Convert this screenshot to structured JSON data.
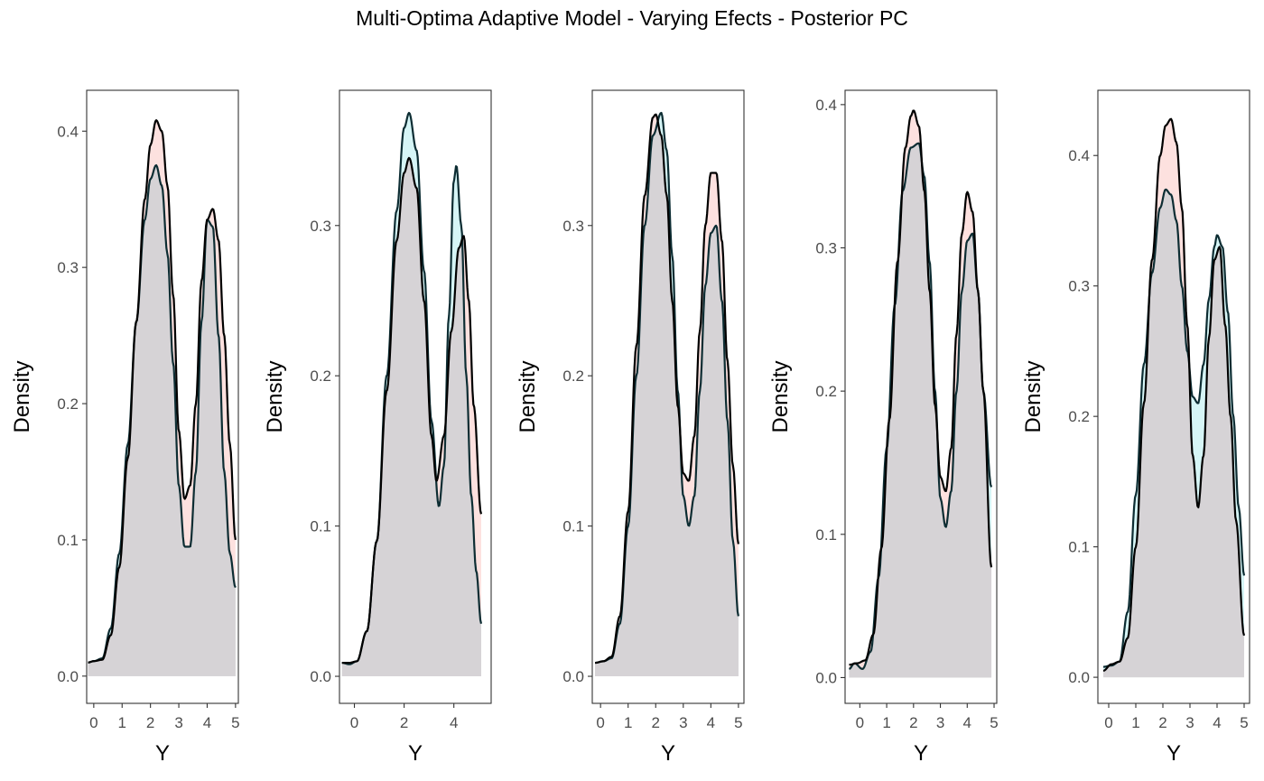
{
  "chart_data": {
    "title": "Multi-Optima Adaptive Model - Varying Efects - Posterior PC",
    "type": "area",
    "fill_colors": {
      "series_a": "#f8766d",
      "series_b": "#00bfc4",
      "overlap": "#d6d3d6"
    },
    "curve_colors": {
      "series_a": "#000000",
      "series_b": "#0d2d33"
    },
    "panels": [
      {
        "xlabel": "Y",
        "ylabel": "Density",
        "xlim": [
          -0.25,
          5.1
        ],
        "ylim": [
          -0.02,
          0.43
        ],
        "xticks": [
          0,
          1,
          2,
          3,
          4,
          5
        ],
        "xtick_labels": [
          "0",
          "1",
          "2",
          "3",
          "4",
          "5"
        ],
        "yticks": [
          0,
          0.1,
          0.2,
          0.3,
          0.4
        ],
        "ytick_labels": [
          "0.0",
          "0.1",
          "0.2",
          "0.3",
          "0.4"
        ],
        "series": [
          {
            "x": [
              -0.2,
              0,
              0.3,
              0.6,
              0.9,
              1.2,
              1.5,
              1.8,
              2.0,
              2.2,
              2.4,
              2.6,
              2.8,
              3.0,
              3.2,
              3.4,
              3.6,
              3.8,
              4.0,
              4.2,
              4.4,
              4.6,
              4.8,
              5.0
            ],
            "y": [
              0.01,
              0.011,
              0.012,
              0.03,
              0.08,
              0.16,
              0.26,
              0.35,
              0.39,
              0.408,
              0.4,
              0.36,
              0.28,
              0.18,
              0.13,
              0.14,
              0.2,
              0.29,
              0.335,
              0.343,
              0.32,
              0.25,
              0.17,
              0.1
            ]
          },
          {
            "x": [
              -0.2,
              0,
              0.3,
              0.6,
              0.9,
              1.2,
              1.5,
              1.8,
              2.0,
              2.2,
              2.4,
              2.6,
              2.8,
              3.0,
              3.2,
              3.4,
              3.6,
              3.8,
              4.0,
              4.2,
              4.4,
              4.6,
              4.8,
              5.0
            ],
            "y": [
              0.01,
              0.011,
              0.013,
              0.035,
              0.09,
              0.17,
              0.26,
              0.335,
              0.365,
              0.375,
              0.36,
              0.31,
              0.23,
              0.14,
              0.095,
              0.095,
              0.15,
              0.26,
              0.335,
              0.33,
              0.25,
              0.15,
              0.09,
              0.065
            ]
          }
        ]
      },
      {
        "xlabel": "Y",
        "ylabel": "Density",
        "xlim": [
          -0.6,
          5.5
        ],
        "ylim": [
          -0.018,
          0.39
        ],
        "xticks": [
          0,
          2,
          4
        ],
        "xtick_labels": [
          "0",
          "2",
          "4"
        ],
        "yticks": [
          0,
          0.1,
          0.2,
          0.3
        ],
        "ytick_labels": [
          "0.0",
          "0.1",
          "0.2",
          "0.3"
        ],
        "series": [
          {
            "x": [
              -0.5,
              -0.2,
              0.1,
              0.5,
              0.9,
              1.3,
              1.7,
              2.0,
              2.2,
              2.5,
              2.8,
              3.1,
              3.3,
              3.6,
              3.9,
              4.2,
              4.4,
              4.6,
              4.8,
              5.1
            ],
            "y": [
              0.009,
              0.009,
              0.01,
              0.03,
              0.09,
              0.19,
              0.29,
              0.335,
              0.345,
              0.325,
              0.25,
              0.16,
              0.13,
              0.16,
              0.23,
              0.285,
              0.293,
              0.25,
              0.18,
              0.108
            ]
          },
          {
            "x": [
              -0.5,
              -0.2,
              0.1,
              0.5,
              0.9,
              1.3,
              1.7,
              2.0,
              2.2,
              2.5,
              2.8,
              3.1,
              3.4,
              3.6,
              3.8,
              4.0,
              4.1,
              4.3,
              4.5,
              4.7,
              4.9,
              5.1
            ],
            "y": [
              0.009,
              0.008,
              0.01,
              0.03,
              0.09,
              0.2,
              0.31,
              0.365,
              0.375,
              0.35,
              0.27,
              0.17,
              0.113,
              0.14,
              0.24,
              0.33,
              0.34,
              0.3,
              0.2,
              0.12,
              0.07,
              0.035
            ]
          }
        ]
      },
      {
        "xlabel": "Y",
        "ylabel": "Density",
        "xlim": [
          -0.3,
          5.2
        ],
        "ylim": [
          -0.018,
          0.39
        ],
        "xticks": [
          0,
          1,
          2,
          3,
          4,
          5
        ],
        "xtick_labels": [
          "0",
          "1",
          "2",
          "3",
          "4",
          "5"
        ],
        "yticks": [
          0,
          0.1,
          0.2,
          0.3
        ],
        "ytick_labels": [
          "0.0",
          "0.1",
          "0.2",
          "0.3"
        ],
        "series": [
          {
            "x": [
              -0.2,
              0.1,
              0.4,
              0.7,
              1.0,
              1.3,
              1.6,
              1.9,
              2.0,
              2.2,
              2.4,
              2.6,
              2.8,
              3.0,
              3.2,
              3.4,
              3.6,
              3.8,
              4.0,
              4.2,
              4.4,
              4.6,
              4.8,
              5.0
            ],
            "y": [
              0.009,
              0.01,
              0.013,
              0.04,
              0.11,
              0.22,
              0.32,
              0.372,
              0.374,
              0.36,
              0.32,
              0.25,
              0.18,
              0.135,
              0.13,
              0.16,
              0.23,
              0.3,
              0.335,
              0.335,
              0.29,
              0.21,
              0.14,
              0.088
            ]
          },
          {
            "x": [
              -0.2,
              0.1,
              0.4,
              0.7,
              1.0,
              1.3,
              1.6,
              1.9,
              2.2,
              2.4,
              2.6,
              2.8,
              3.0,
              3.2,
              3.4,
              3.6,
              3.8,
              4.0,
              4.2,
              4.4,
              4.6,
              4.8,
              5.0
            ],
            "y": [
              0.009,
              0.01,
              0.012,
              0.035,
              0.1,
              0.2,
              0.3,
              0.36,
              0.375,
              0.35,
              0.28,
              0.19,
              0.12,
              0.1,
              0.12,
              0.19,
              0.26,
              0.295,
              0.3,
              0.25,
              0.17,
              0.09,
              0.04
            ]
          }
        ]
      },
      {
        "xlabel": "Y",
        "ylabel": "Density",
        "xlim": [
          -0.55,
          5.1
        ],
        "ylim": [
          -0.018,
          0.41
        ],
        "xticks": [
          0,
          1,
          2,
          3,
          4,
          5
        ],
        "xtick_labels": [
          "0",
          "1",
          "2",
          "3",
          "4",
          "5"
        ],
        "yticks": [
          0,
          0.1,
          0.2,
          0.3,
          0.4
        ],
        "ytick_labels": [
          "0.0",
          "0.1",
          "0.2",
          "0.3",
          "0.4"
        ],
        "series": [
          {
            "x": [
              -0.4,
              -0.1,
              0.2,
              0.5,
              0.8,
              1.1,
              1.4,
              1.7,
              1.9,
              2.0,
              2.2,
              2.4,
              2.6,
              2.8,
              3.0,
              3.2,
              3.4,
              3.6,
              3.8,
              4.0,
              4.2,
              4.4,
              4.6,
              4.9
            ],
            "y": [
              0.009,
              0.01,
              0.012,
              0.03,
              0.09,
              0.18,
              0.29,
              0.37,
              0.392,
              0.396,
              0.385,
              0.34,
              0.27,
              0.19,
              0.14,
              0.13,
              0.16,
              0.24,
              0.31,
              0.339,
              0.325,
              0.27,
              0.2,
              0.077
            ]
          },
          {
            "x": [
              -0.4,
              -0.2,
              0.1,
              0.4,
              0.7,
              1.0,
              1.3,
              1.6,
              1.9,
              2.2,
              2.4,
              2.6,
              2.8,
              3.0,
              3.2,
              3.4,
              3.6,
              3.8,
              4.0,
              4.2,
              4.4,
              4.6,
              4.9
            ],
            "y": [
              0.006,
              0.01,
              0.006,
              0.018,
              0.07,
              0.16,
              0.26,
              0.34,
              0.37,
              0.373,
              0.35,
              0.29,
              0.2,
              0.125,
              0.105,
              0.13,
              0.2,
              0.27,
              0.305,
              0.31,
              0.27,
              0.2,
              0.133
            ]
          }
        ]
      },
      {
        "xlabel": "Y",
        "ylabel": "Density",
        "xlim": [
          -0.4,
          5.2
        ],
        "ylim": [
          -0.02,
          0.45
        ],
        "xticks": [
          0,
          1,
          2,
          3,
          4,
          5
        ],
        "xtick_labels": [
          "0",
          "1",
          "2",
          "3",
          "4",
          "5"
        ],
        "yticks": [
          0,
          0.1,
          0.2,
          0.3,
          0.4
        ],
        "ytick_labels": [
          "0.0",
          "0.1",
          "0.2",
          "0.3",
          "0.4"
        ],
        "series": [
          {
            "x": [
              -0.2,
              0.1,
              0.4,
              0.7,
              1.0,
              1.3,
              1.6,
              1.9,
              2.1,
              2.3,
              2.5,
              2.7,
              2.9,
              3.1,
              3.3,
              3.5,
              3.7,
              3.9,
              4.1,
              4.3,
              4.5,
              4.7,
              5.0
            ],
            "y": [
              0.005,
              0.01,
              0.012,
              0.03,
              0.1,
              0.21,
              0.32,
              0.4,
              0.423,
              0.428,
              0.41,
              0.36,
              0.27,
              0.17,
              0.13,
              0.17,
              0.26,
              0.32,
              0.33,
              0.27,
              0.2,
              0.12,
              0.032
            ]
          },
          {
            "x": [
              -0.2,
              0.1,
              0.4,
              0.7,
              1.0,
              1.3,
              1.6,
              1.9,
              2.1,
              2.3,
              2.5,
              2.7,
              2.9,
              3.1,
              3.3,
              3.5,
              3.7,
              3.9,
              4.0,
              4.2,
              4.4,
              4.6,
              4.8,
              5.0
            ],
            "y": [
              0.008,
              0.009,
              0.012,
              0.05,
              0.14,
              0.24,
              0.31,
              0.36,
              0.374,
              0.37,
              0.35,
              0.3,
              0.25,
              0.215,
              0.21,
              0.24,
              0.29,
              0.33,
              0.339,
              0.33,
              0.28,
              0.2,
              0.13,
              0.078
            ]
          }
        ]
      }
    ]
  }
}
